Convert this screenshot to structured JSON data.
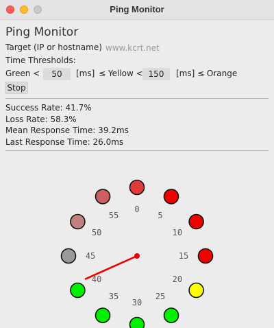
{
  "window": {
    "title": "Ping Monitor"
  },
  "app_title": "Ping Monitor",
  "target": {
    "label": "Target (IP or hostname):",
    "placeholder": "www.kcrt.net"
  },
  "thresholds": {
    "label": "Time Thresholds:",
    "green_label": "Green <",
    "green_value": "50",
    "unit1": "[ms]",
    "yellow_label": "≤ Yellow <",
    "yellow_value": "150",
    "unit2": "[ms]",
    "orange_label": "≤ Orange"
  },
  "stop_label": "Stop",
  "stats": {
    "success_rate": "Success Rate: 41.7%",
    "loss_rate": "Loss Rate: 58.3%",
    "mean_time": "Mean Response Time: 39.2ms",
    "last_time": "Last Response Time: 26.0ms"
  },
  "dial": {
    "hand_second": 41,
    "slots": [
      {
        "label": "0",
        "color": "#e03a3a"
      },
      {
        "label": "5",
        "color": "#f20000"
      },
      {
        "label": "10",
        "color": "#f20000"
      },
      {
        "label": "15",
        "color": "#f20000"
      },
      {
        "label": "20",
        "color": "#ffff00"
      },
      {
        "label": "25",
        "color": "#00f000"
      },
      {
        "label": "30",
        "color": "#00f000"
      },
      {
        "label": "35",
        "color": "#00f000"
      },
      {
        "label": "40",
        "color": "#00f000"
      },
      {
        "label": "45",
        "color": "#9a9a9a"
      },
      {
        "label": "50",
        "color": "#c08080"
      },
      {
        "label": "55",
        "color": "#cc6060"
      }
    ]
  }
}
